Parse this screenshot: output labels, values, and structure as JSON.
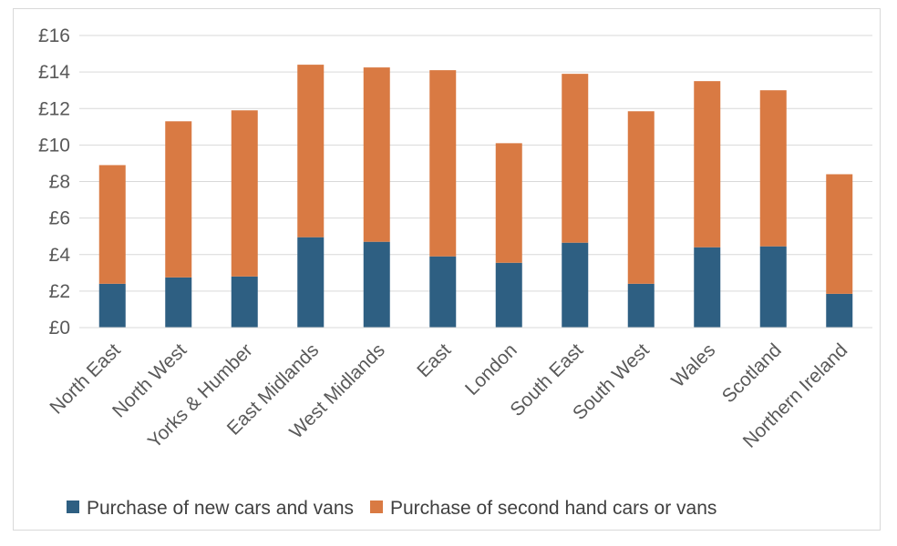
{
  "chart_data": {
    "type": "bar",
    "stacked": true,
    "title": "",
    "xlabel": "",
    "ylabel": "",
    "ylim": [
      0,
      16
    ],
    "y_ticks": [
      0,
      2,
      4,
      6,
      8,
      10,
      12,
      14,
      16
    ],
    "y_tick_labels": [
      "£0",
      "£2",
      "£4",
      "£6",
      "£8",
      "£10",
      "£12",
      "£14",
      "£16"
    ],
    "grid": true,
    "legend_position": "bottom",
    "categories": [
      "North East",
      "North West",
      "Yorks & Humber",
      "East Midlands",
      "West Midlands",
      "East",
      "London",
      "South East",
      "South West",
      "Wales",
      "Scotland",
      "Northern Ireland"
    ],
    "series": [
      {
        "name": "Purchase of new cars and vans",
        "color": "#2e5f82",
        "values": [
          2.4,
          2.75,
          2.8,
          4.95,
          4.7,
          3.9,
          3.55,
          4.65,
          2.4,
          4.4,
          4.45,
          1.85
        ]
      },
      {
        "name": "Purchase of second hand cars or vans",
        "color": "#d97a43",
        "values": [
          6.5,
          8.55,
          9.1,
          9.45,
          9.55,
          10.2,
          6.55,
          9.25,
          9.45,
          9.1,
          8.55,
          6.55
        ]
      }
    ]
  }
}
